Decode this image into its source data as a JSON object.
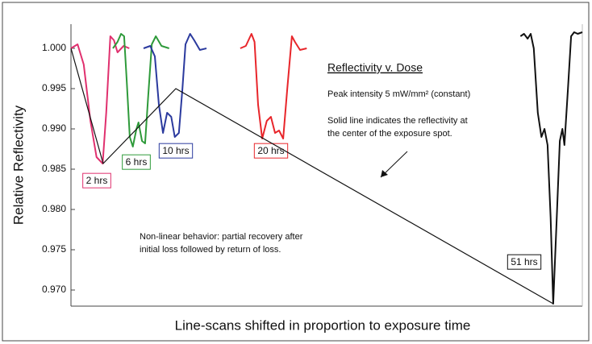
{
  "chart_data": {
    "type": "line",
    "ylabel": "Relative Reflectivity",
    "xlabel": "Line-scans shifted in proportion to exposure time",
    "xlim": [
      0,
      100
    ],
    "ylim": [
      0.968,
      1.003
    ],
    "yticks": [
      {
        "value": 0.97,
        "label": "0.970"
      },
      {
        "value": 0.975,
        "label": "0.975"
      },
      {
        "value": 0.98,
        "label": "0.980"
      },
      {
        "value": 0.985,
        "label": "0.985"
      },
      {
        "value": 0.99,
        "label": "0.990"
      },
      {
        "value": 0.995,
        "label": "0.995"
      },
      {
        "value": 1.0,
        "label": "1.000"
      }
    ],
    "annotations": {
      "title": "Reflectivity v. Dose",
      "intensity": "Peak intensity 5 mW/mm² (constant)",
      "solid_line": [
        "Solid line indicates the reflectivity at",
        "the center of the exposure spot."
      ],
      "behavior": [
        "Non-linear behavior: partial recovery after",
        "initial loss followed by return of loss."
      ]
    },
    "series": [
      {
        "name": "2 hrs",
        "color": "#e0306e",
        "x": [
          0,
          1.3,
          2.5,
          3.8,
          5.0,
          6.2,
          6.9,
          7.7,
          8.4,
          9.1,
          10.3,
          11.4
        ],
        "values": [
          1.0,
          1.0005,
          0.998,
          0.991,
          0.9865,
          0.9857,
          0.992,
          1.0015,
          1.001,
          0.9995,
          1.0003,
          1.0
        ]
      },
      {
        "name": "6 hrs",
        "color": "#2e9a3a",
        "x": [
          8.2,
          9.1,
          9.8,
          10.4,
          10.9,
          11.5,
          12.1,
          12.8,
          13.2,
          13.9,
          14.5,
          15.1,
          15.8,
          16.6,
          17.7,
          19.2
        ],
        "values": [
          1.0,
          1.0008,
          1.0018,
          1.0015,
          0.996,
          0.989,
          0.9878,
          0.99,
          0.9908,
          0.9885,
          0.9882,
          0.994,
          1.0005,
          1.0015,
          1.0003,
          1.0
        ]
      },
      {
        "name": "10 hrs",
        "color": "#2b3a9e",
        "x": [
          14.2,
          15.5,
          16.4,
          17.2,
          18.0,
          18.8,
          19.6,
          20.3,
          21.1,
          21.8,
          22.4,
          23.3,
          24.1,
          25.2,
          26.5
        ],
        "values": [
          1.0,
          1.0003,
          0.999,
          0.993,
          0.9895,
          0.992,
          0.9915,
          0.989,
          0.9895,
          0.995,
          1.0005,
          1.0018,
          1.001,
          0.9998,
          1.0
        ]
      },
      {
        "name": "20 hrs",
        "color": "#e8262b",
        "x": [
          33.1,
          34.2,
          35.3,
          35.9,
          36.6,
          37.4,
          38.3,
          39.1,
          39.9,
          40.7,
          41.5,
          42.3,
          43.2,
          43.8,
          44.8,
          46.1
        ],
        "values": [
          1.0,
          1.0003,
          1.0018,
          1.0008,
          0.993,
          0.9888,
          0.991,
          0.9915,
          0.9895,
          0.9898,
          0.9888,
          0.995,
          1.0015,
          1.0008,
          0.9998,
          1.0
        ]
      },
      {
        "name": "51 hrs",
        "color": "#111111",
        "x": [
          87.9,
          88.6,
          89.3,
          89.9,
          90.5,
          91.3,
          92.0,
          92.6,
          93.2,
          93.8,
          94.3,
          95.0,
          95.6,
          96.1,
          96.5,
          97.2,
          97.8,
          98.4,
          99.1,
          100
        ],
        "values": [
          1.0015,
          1.0018,
          1.0012,
          1.0018,
          1.0,
          0.992,
          0.989,
          0.99,
          0.988,
          0.979,
          0.9683,
          0.979,
          0.9885,
          0.99,
          0.988,
          0.995,
          1.0015,
          1.002,
          1.0018,
          1.002
        ]
      },
      {
        "color": "#111111",
        "x": [
          0,
          6.3,
          20.5,
          94.3
        ],
        "values": [
          1.0,
          0.9857,
          0.995,
          0.9683
        ]
      }
    ]
  }
}
